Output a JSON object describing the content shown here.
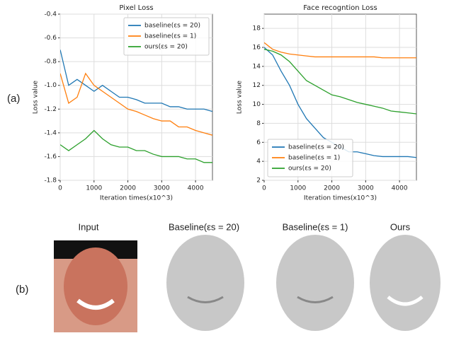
{
  "chart_data": [
    {
      "type": "line",
      "title": "Pixel Loss",
      "xlabel": "Iteration times(x10^3)",
      "ylabel": "Loss value",
      "x": [
        0,
        250,
        500,
        750,
        1000,
        1250,
        1500,
        1750,
        2000,
        2250,
        2500,
        2750,
        3000,
        3250,
        3500,
        3750,
        4000,
        4250,
        4500
      ],
      "series": [
        {
          "name": "baseline(εs = 20)",
          "color": "#1f77b4",
          "values": [
            -0.7,
            -1.0,
            -0.95,
            -1.0,
            -1.05,
            -1.0,
            -1.05,
            -1.1,
            -1.1,
            -1.12,
            -1.15,
            -1.15,
            -1.15,
            -1.18,
            -1.18,
            -1.2,
            -1.2,
            -1.2,
            -1.22
          ]
        },
        {
          "name": "baseline(εs = 1)",
          "color": "#ff7f0e",
          "values": [
            -0.9,
            -1.15,
            -1.1,
            -0.9,
            -1.0,
            -1.05,
            -1.1,
            -1.15,
            -1.2,
            -1.22,
            -1.25,
            -1.28,
            -1.3,
            -1.3,
            -1.35,
            -1.35,
            -1.38,
            -1.4,
            -1.42
          ]
        },
        {
          "name": "ours(εs = 20)",
          "color": "#2ca02c",
          "values": [
            -1.5,
            -1.55,
            -1.5,
            -1.45,
            -1.38,
            -1.45,
            -1.5,
            -1.52,
            -1.52,
            -1.55,
            -1.55,
            -1.58,
            -1.6,
            -1.6,
            -1.6,
            -1.62,
            -1.62,
            -1.65,
            -1.65
          ]
        }
      ],
      "xlim": [
        0,
        4500
      ],
      "xticks": [
        0,
        1000,
        2000,
        3000,
        4000
      ],
      "ylim": [
        -1.8,
        -0.4
      ],
      "yticks": [
        -1.8,
        -1.6,
        -1.4,
        -1.2,
        {
          "value": -1,
          "label": "-1.0"
        },
        -0.8,
        -0.6,
        -0.4
      ],
      "grid": true,
      "legend": "upper right"
    },
    {
      "type": "line",
      "title": "Face recogntion Loss",
      "xlabel": "Iteration times(x10^3)",
      "ylabel": "Loss value",
      "x": [
        0,
        250,
        500,
        750,
        1000,
        1250,
        1500,
        1750,
        2000,
        2250,
        2500,
        2750,
        3000,
        3250,
        3500,
        3750,
        4000,
        4250,
        4500
      ],
      "series": [
        {
          "name": "baseline(εs = 20)",
          "color": "#1f77b4",
          "values": [
            16,
            15.2,
            13.5,
            12,
            10,
            8.5,
            7.5,
            6.5,
            6,
            5.5,
            5,
            5,
            4.8,
            4.6,
            4.5,
            4.5,
            4.5,
            4.5,
            4.4
          ]
        },
        {
          "name": "baseline(εs = 1)",
          "color": "#ff7f0e",
          "values": [
            16.5,
            15.8,
            15.5,
            15.3,
            15.2,
            15.1,
            15,
            15,
            15,
            15,
            15,
            15,
            15,
            15,
            14.9,
            14.9,
            14.9,
            14.9,
            14.9
          ]
        },
        {
          "name": "ours(εs = 20)",
          "color": "#2ca02c",
          "values": [
            15.8,
            15.6,
            15.2,
            14.5,
            13.5,
            12.5,
            12,
            11.5,
            11,
            10.8,
            10.5,
            10.2,
            10,
            9.8,
            9.6,
            9.3,
            9.2,
            9.1,
            9
          ]
        }
      ],
      "xlim": [
        0,
        4500
      ],
      "xticks": [
        0,
        1000,
        2000,
        3000,
        4000
      ],
      "ylim": [
        2,
        19.5
      ],
      "yticks": [
        2,
        4,
        6,
        8,
        10,
        12,
        14,
        16,
        18
      ],
      "grid": true,
      "legend": "lower left"
    }
  ],
  "panel_labels": [
    "(a)",
    "(b)"
  ],
  "images": [
    {
      "caption": "Input"
    },
    {
      "caption": "Baseline(εs = 20)"
    },
    {
      "caption": "Baseline(εs = 1)"
    },
    {
      "caption": "Ours"
    }
  ]
}
